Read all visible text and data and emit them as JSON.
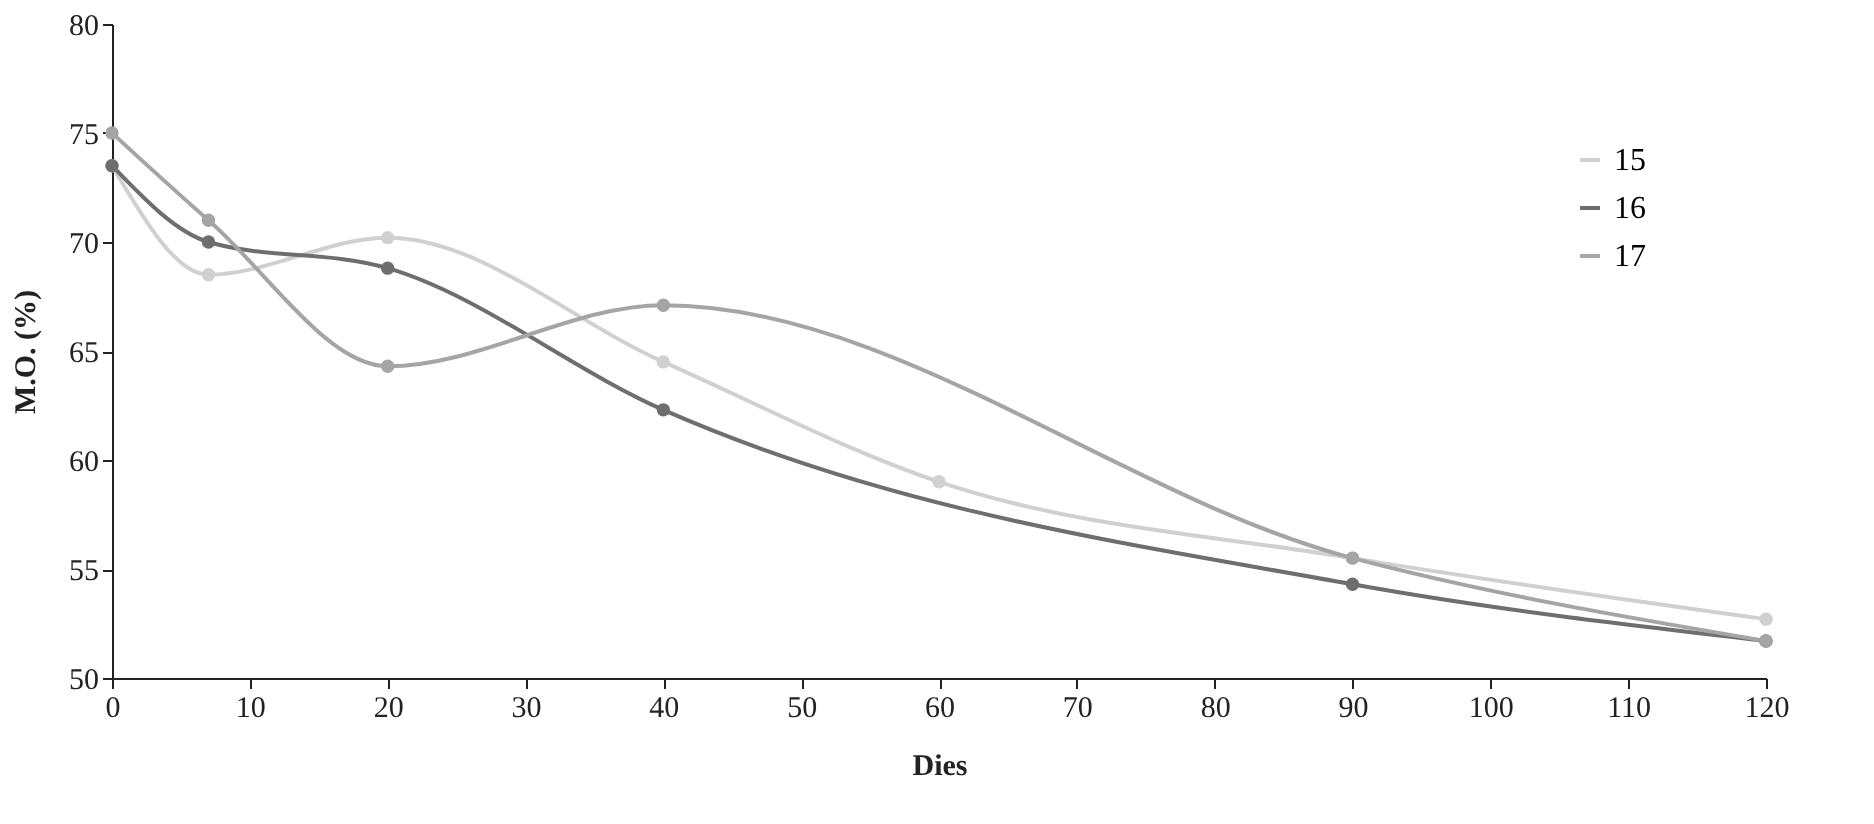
{
  "chart_data": {
    "type": "line",
    "xlabel": "Dies",
    "ylabel": "M.O. (%)",
    "xlim": [
      0,
      120
    ],
    "xticks": [
      0,
      10,
      20,
      30,
      40,
      50,
      60,
      70,
      80,
      90,
      100,
      110,
      120
    ],
    "ylim": [
      50,
      80
    ],
    "yticks": [
      50,
      55,
      60,
      65,
      70,
      75,
      80
    ],
    "grid": false,
    "legend": "top right",
    "marker": "circle",
    "line_style": "solid",
    "series": [
      {
        "name": "15",
        "color": "#d0d0d0",
        "x": [
          0,
          7,
          20,
          40,
          60,
          90,
          120
        ],
        "values": [
          73.5,
          68.5,
          70.2,
          64.5,
          59,
          55.5,
          52.7
        ]
      },
      {
        "name": "16",
        "color": "#6e6e6e",
        "x": [
          0,
          7,
          20,
          40,
          90,
          120
        ],
        "values": [
          73.5,
          70,
          68.8,
          62.3,
          54.3,
          51.7
        ]
      },
      {
        "name": "17",
        "color": "#a5a5a5",
        "x": [
          0,
          7,
          20,
          40,
          90,
          120
        ],
        "values": [
          75,
          71,
          64.3,
          67.1,
          55.5,
          51.7
        ]
      }
    ]
  }
}
